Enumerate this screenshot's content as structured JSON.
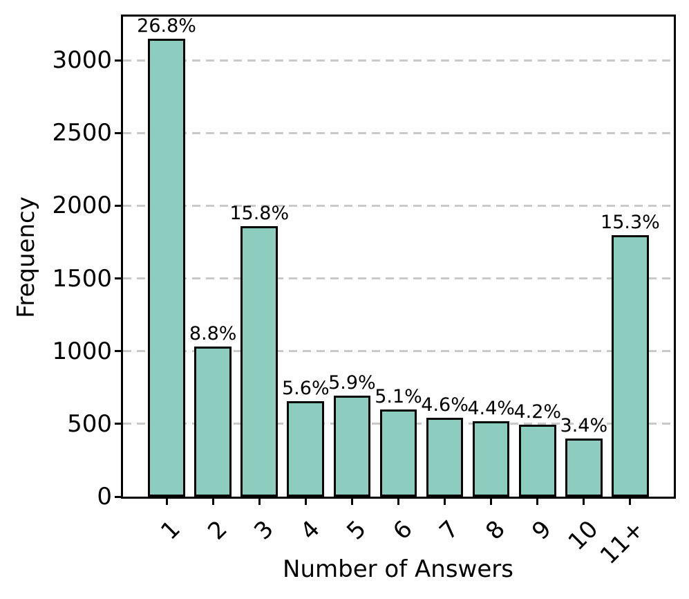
{
  "chart_data": {
    "type": "bar",
    "title": "",
    "xlabel": "Number of Answers",
    "ylabel": "Frequency",
    "categories": [
      "1",
      "2",
      "3",
      "4",
      "5",
      "6",
      "7",
      "8",
      "9",
      "10",
      "11+"
    ],
    "values": [
      3149,
      1034,
      1857,
      658,
      693,
      599,
      541,
      517,
      494,
      400,
      1798
    ],
    "bar_labels": [
      "26.8%",
      "8.8%",
      "15.8%",
      "5.6%",
      "5.9%",
      "5.1%",
      "4.6%",
      "4.4%",
      "4.2%",
      "3.4%",
      "15.3%"
    ],
    "yticks": [
      0,
      500,
      1000,
      1500,
      2000,
      2500,
      3000
    ],
    "ylim": [
      0,
      3300
    ],
    "grid": "horizontal dashed gridlines at y ticks",
    "legend": "none",
    "bar_color": "#8ccdc0",
    "bar_edge_color": "#000000",
    "grid_color": "#c9c9c9",
    "text_color": "#000000"
  }
}
